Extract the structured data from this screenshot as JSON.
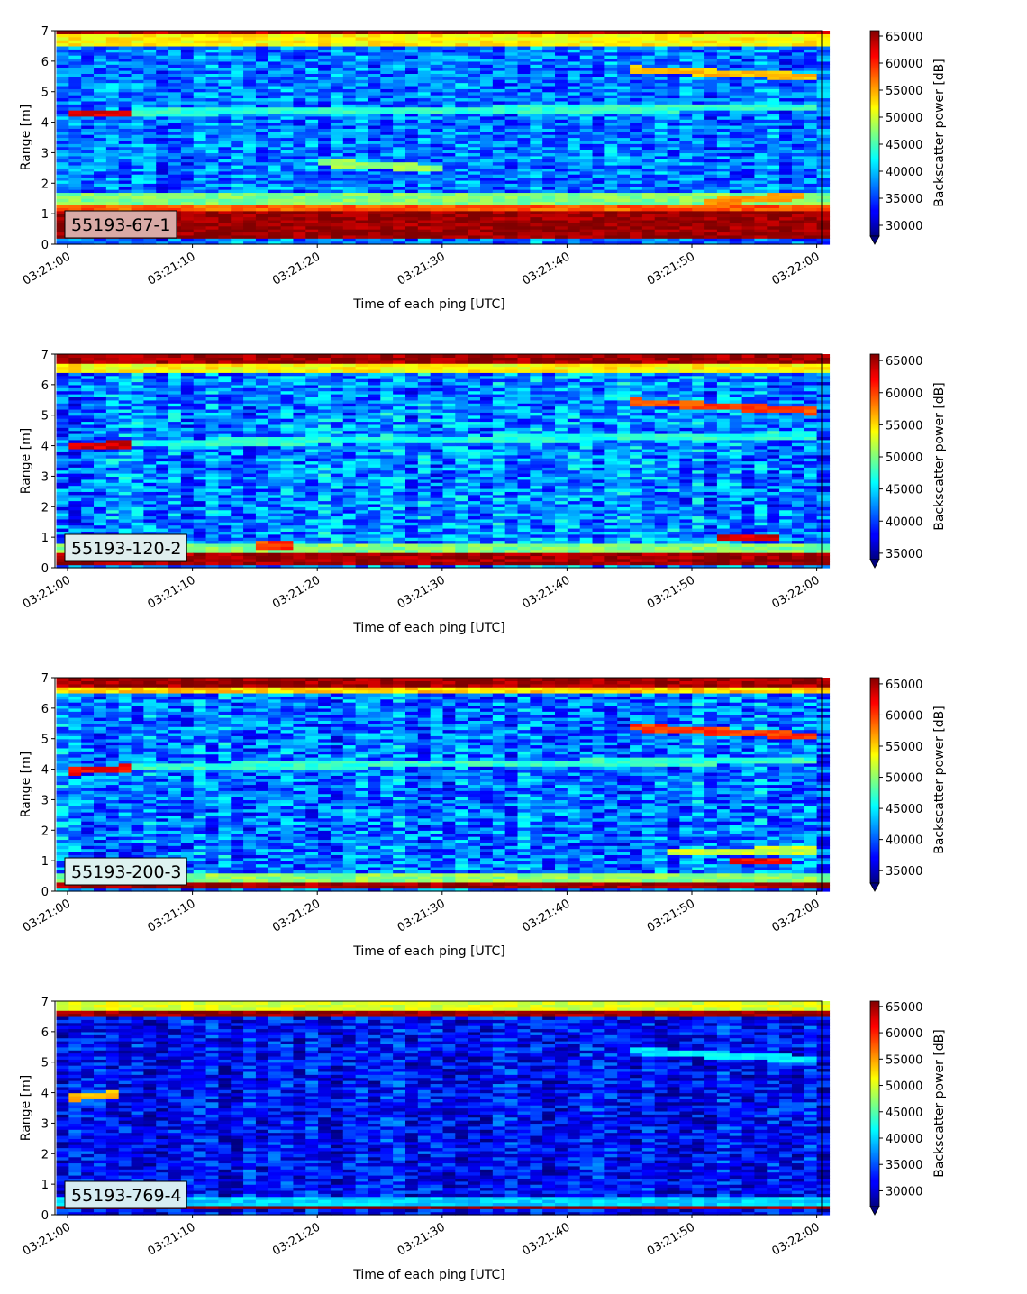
{
  "figure": {
    "ylabel": "Range [m]",
    "xlabel": "Time of each ping [UTC]",
    "colorbar_label": "Backscatter power [dB]",
    "colormap": "jet"
  },
  "chart_data": [
    {
      "type": "heatmap",
      "label": "55193-67-1",
      "label_box_color": "#d9aaa6",
      "xlabel": "Time of each ping [UTC]",
      "ylabel": "Range [m]",
      "x_ticks": [
        "03:21:00",
        "03:21:10",
        "03:21:20",
        "03:21:30",
        "03:21:40",
        "03:21:50",
        "03:22:00"
      ],
      "y_ticks": [
        0,
        1,
        2,
        3,
        4,
        5,
        6,
        7
      ],
      "ylim": [
        0,
        7
      ],
      "colorbar_label": "Backscatter power [dB]",
      "colorbar_ticks": [
        30000,
        35000,
        40000,
        45000,
        50000,
        55000,
        60000,
        65000
      ],
      "clim": [
        28000,
        66000
      ],
      "bands": [
        {
          "range": [
            0.2,
            1.1
          ],
          "value": 65000
        },
        {
          "range": [
            1.1,
            1.3
          ],
          "value": 58000
        },
        {
          "range": [
            1.3,
            1.75
          ],
          "value": 47000
        },
        {
          "range": [
            6.5,
            6.95
          ],
          "value": 52000
        },
        {
          "range": [
            6.95,
            7.0
          ],
          "value": 64000
        }
      ],
      "features": [
        {
          "x": [
            "03:21:00",
            "03:21:05"
          ],
          "range_start": 4.3,
          "range_end": 4.3,
          "value": 62000
        },
        {
          "x": [
            "03:21:05",
            "03:22:00"
          ],
          "range_start": 4.35,
          "range_end": 4.5,
          "value": 44000
        },
        {
          "x": [
            "03:21:20",
            "03:21:30"
          ],
          "range_start": 2.7,
          "range_end": 2.5,
          "value": 48000
        },
        {
          "x": [
            "03:21:45",
            "03:22:00"
          ],
          "range_start": 5.75,
          "range_end": 5.5,
          "value": 54000
        },
        {
          "x": [
            "03:21:51",
            "03:21:59"
          ],
          "range_start": 1.4,
          "range_end": 1.6,
          "value": 56000
        }
      ],
      "background_value": 37000
    },
    {
      "type": "heatmap",
      "label": "55193-120-2",
      "label_box_color": "#dfeeee",
      "xlabel": "Time of each ping [UTC]",
      "ylabel": "Range [m]",
      "x_ticks": [
        "03:21:00",
        "03:21:10",
        "03:21:20",
        "03:21:30",
        "03:21:40",
        "03:21:50",
        "03:22:00"
      ],
      "y_ticks": [
        0,
        1,
        2,
        3,
        4,
        5,
        6,
        7
      ],
      "ylim": [
        0,
        7
      ],
      "colorbar_label": "Backscatter power [dB]",
      "colorbar_ticks": [
        35000,
        40000,
        45000,
        50000,
        55000,
        60000,
        65000
      ],
      "clim": [
        34000,
        66000
      ],
      "bands": [
        {
          "range": [
            0.1,
            0.5
          ],
          "value": 65000
        },
        {
          "range": [
            0.5,
            0.8
          ],
          "value": 50000
        },
        {
          "range": [
            6.45,
            6.75
          ],
          "value": 54000
        },
        {
          "range": [
            6.75,
            7.0
          ],
          "value": 65000
        }
      ],
      "features": [
        {
          "x": [
            "03:21:00",
            "03:21:05"
          ],
          "range_start": 4.0,
          "range_end": 4.05,
          "value": 63000
        },
        {
          "x": [
            "03:21:05",
            "03:22:00"
          ],
          "range_start": 4.1,
          "range_end": 4.35,
          "value": 47000
        },
        {
          "x": [
            "03:21:45",
            "03:22:00"
          ],
          "range_start": 5.45,
          "range_end": 5.15,
          "value": 60000
        },
        {
          "x": [
            "03:21:52",
            "03:21:57"
          ],
          "range_start": 1.0,
          "range_end": 1.0,
          "value": 63000
        },
        {
          "x": [
            "03:21:15",
            "03:21:18"
          ],
          "range_start": 0.75,
          "range_end": 0.75,
          "value": 60000
        }
      ],
      "background_value": 42000
    },
    {
      "type": "heatmap",
      "label": "55193-200-3",
      "label_box_color": "#ddf2f0",
      "xlabel": "Time of each ping [UTC]",
      "ylabel": "Range [m]",
      "x_ticks": [
        "03:21:00",
        "03:21:10",
        "03:21:20",
        "03:21:30",
        "03:21:40",
        "03:21:50",
        "03:22:00"
      ],
      "y_ticks": [
        0,
        1,
        2,
        3,
        4,
        5,
        6,
        7
      ],
      "ylim": [
        0,
        7
      ],
      "colorbar_label": "Backscatter power [dB]",
      "colorbar_ticks": [
        35000,
        40000,
        45000,
        50000,
        55000,
        60000,
        65000
      ],
      "clim": [
        33000,
        66000
      ],
      "bands": [
        {
          "range": [
            0.1,
            0.35
          ],
          "value": 65000
        },
        {
          "range": [
            0.35,
            0.6
          ],
          "value": 50000
        },
        {
          "range": [
            6.5,
            6.75
          ],
          "value": 55000
        },
        {
          "range": [
            6.75,
            7.0
          ],
          "value": 65000
        }
      ],
      "features": [
        {
          "x": [
            "03:21:00",
            "03:21:05"
          ],
          "range_start": 3.95,
          "range_end": 4.05,
          "value": 62000
        },
        {
          "x": [
            "03:21:05",
            "03:22:00"
          ],
          "range_start": 4.1,
          "range_end": 4.3,
          "value": 47000
        },
        {
          "x": [
            "03:21:45",
            "03:22:00"
          ],
          "range_start": 5.4,
          "range_end": 5.1,
          "value": 60000
        },
        {
          "x": [
            "03:21:53",
            "03:21:58"
          ],
          "range_start": 1.0,
          "range_end": 1.0,
          "value": 62000
        },
        {
          "x": [
            "03:21:48",
            "03:22:00"
          ],
          "range_start": 1.3,
          "range_end": 1.35,
          "value": 52000
        }
      ],
      "background_value": 41000
    },
    {
      "type": "heatmap",
      "label": "55193-769-4",
      "label_box_color": "#d6ecf2",
      "xlabel": "Time of each ping [UTC]",
      "ylabel": "Range [m]",
      "x_ticks": [
        "03:21:00",
        "03:21:10",
        "03:21:20",
        "03:21:30",
        "03:21:40",
        "03:21:50",
        "03:22:00"
      ],
      "y_ticks": [
        0,
        1,
        2,
        3,
        4,
        5,
        6,
        7
      ],
      "ylim": [
        0,
        7
      ],
      "colorbar_label": "Backscatter power [dB]",
      "colorbar_ticks": [
        30000,
        35000,
        40000,
        45000,
        50000,
        55000,
        60000,
        65000
      ],
      "clim": [
        27000,
        66000
      ],
      "bands": [
        {
          "range": [
            0.2,
            0.3
          ],
          "value": 65000
        },
        {
          "range": [
            0.3,
            0.6
          ],
          "value": 40000
        },
        {
          "range": [
            6.5,
            6.75
          ],
          "value": 65000
        },
        {
          "range": [
            6.75,
            7.0
          ],
          "value": 50000
        }
      ],
      "features": [
        {
          "x": [
            "03:21:00",
            "03:21:04"
          ],
          "range_start": 3.85,
          "range_end": 3.95,
          "value": 54000
        },
        {
          "x": [
            "03:21:45",
            "03:22:00"
          ],
          "range_start": 5.4,
          "range_end": 5.1,
          "value": 41000
        }
      ],
      "background_value": 32000
    }
  ]
}
